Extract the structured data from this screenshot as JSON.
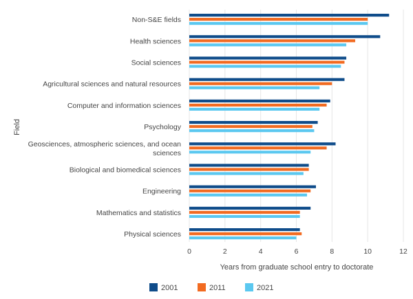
{
  "chart_data": {
    "type": "bar",
    "orientation": "horizontal",
    "title": "",
    "xlabel": "Years from graduate school entry to doctorate",
    "ylabel": "Field",
    "xlim": [
      0,
      12
    ],
    "xticks": [
      0,
      2,
      4,
      6,
      8,
      10,
      12
    ],
    "grid": true,
    "legend_position": "bottom",
    "categories": [
      "Non-S&E fields",
      "Health sciences",
      "Social sciences",
      "Agricultural sciences and natural resources",
      "Computer and information sciences",
      "Psychology",
      "Geosciences, atmospheric sciences, and ocean sciences",
      "Biological and biomedical sciences",
      "Engineering",
      "Mathematics and statistics",
      "Physical sciences"
    ],
    "category_label_lines": [
      [
        "Non-S&E fields"
      ],
      [
        "Health sciences"
      ],
      [
        "Social sciences"
      ],
      [
        "Agricultural sciences and natural resources"
      ],
      [
        "Computer and information sciences"
      ],
      [
        "Psychology"
      ],
      [
        "Geosciences, atmospheric sciences, and ocean",
        "sciences"
      ],
      [
        "Biological and biomedical sciences"
      ],
      [
        "Engineering"
      ],
      [
        "Mathematics and statistics"
      ],
      [
        "Physical sciences"
      ]
    ],
    "series": [
      {
        "name": "2001",
        "color": "#0f4c8a",
        "values": [
          11.2,
          10.7,
          8.8,
          8.7,
          7.9,
          7.2,
          8.2,
          6.7,
          7.1,
          6.8,
          6.2
        ]
      },
      {
        "name": "2011",
        "color": "#f26b21",
        "values": [
          10.0,
          9.3,
          8.7,
          8.0,
          7.7,
          6.9,
          7.7,
          6.7,
          6.8,
          6.2,
          6.3
        ]
      },
      {
        "name": "2021",
        "color": "#5bc8f0",
        "values": [
          10.0,
          8.8,
          8.5,
          7.3,
          7.3,
          7.0,
          6.8,
          6.4,
          6.6,
          6.2,
          6.0
        ]
      }
    ]
  }
}
